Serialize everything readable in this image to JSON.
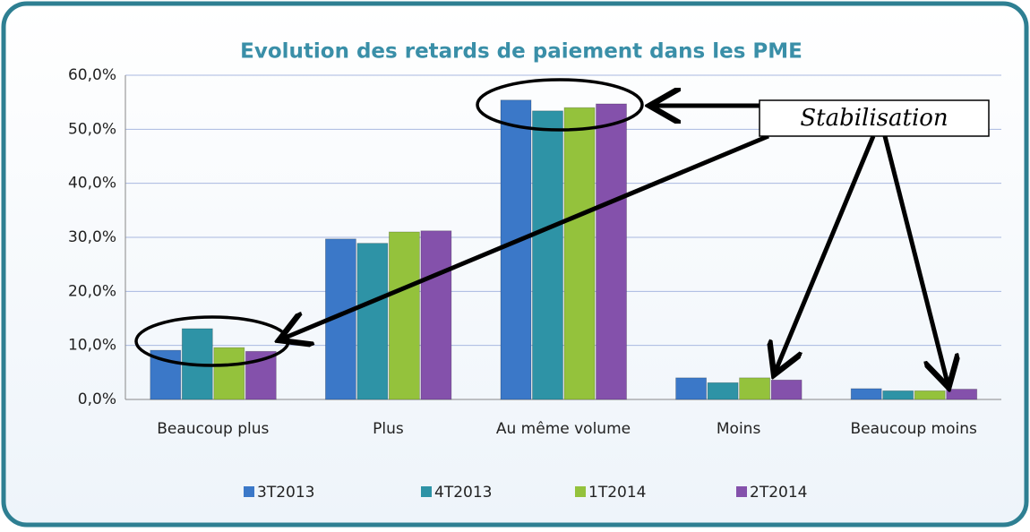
{
  "chart_data": {
    "type": "bar",
    "title": "Evolution des retards de paiement dans les PME",
    "categories": [
      "Beaucoup plus",
      "Plus",
      "Au même volume",
      "Moins",
      "Beaucoup moins"
    ],
    "series": [
      {
        "name": "3T2013",
        "color": "#3b78c8",
        "values": [
          9.1,
          29.7,
          55.4,
          4.0,
          2.0
        ]
      },
      {
        "name": "4T2013",
        "color": "#2e93a6",
        "values": [
          13.1,
          28.9,
          53.4,
          3.1,
          1.6
        ]
      },
      {
        "name": "1T2014",
        "color": "#94c23c",
        "values": [
          9.6,
          31.0,
          54.0,
          4.0,
          1.6
        ]
      },
      {
        "name": "2T2014",
        "color": "#8451ab",
        "values": [
          8.9,
          31.2,
          54.7,
          3.6,
          1.9
        ]
      }
    ],
    "ylim": [
      0,
      60
    ],
    "yticks": [
      {
        "value": 0,
        "label": "0,0%"
      },
      {
        "value": 10,
        "label": "10,0%"
      },
      {
        "value": 20,
        "label": "20,0%"
      },
      {
        "value": 30,
        "label": "30,0%"
      },
      {
        "value": 40,
        "label": "40,0%"
      },
      {
        "value": 50,
        "label": "50,0%"
      },
      {
        "value": 60,
        "label": "60,0%"
      }
    ],
    "grid": true,
    "legend": "bottom",
    "annotation": "Stabilisation"
  }
}
